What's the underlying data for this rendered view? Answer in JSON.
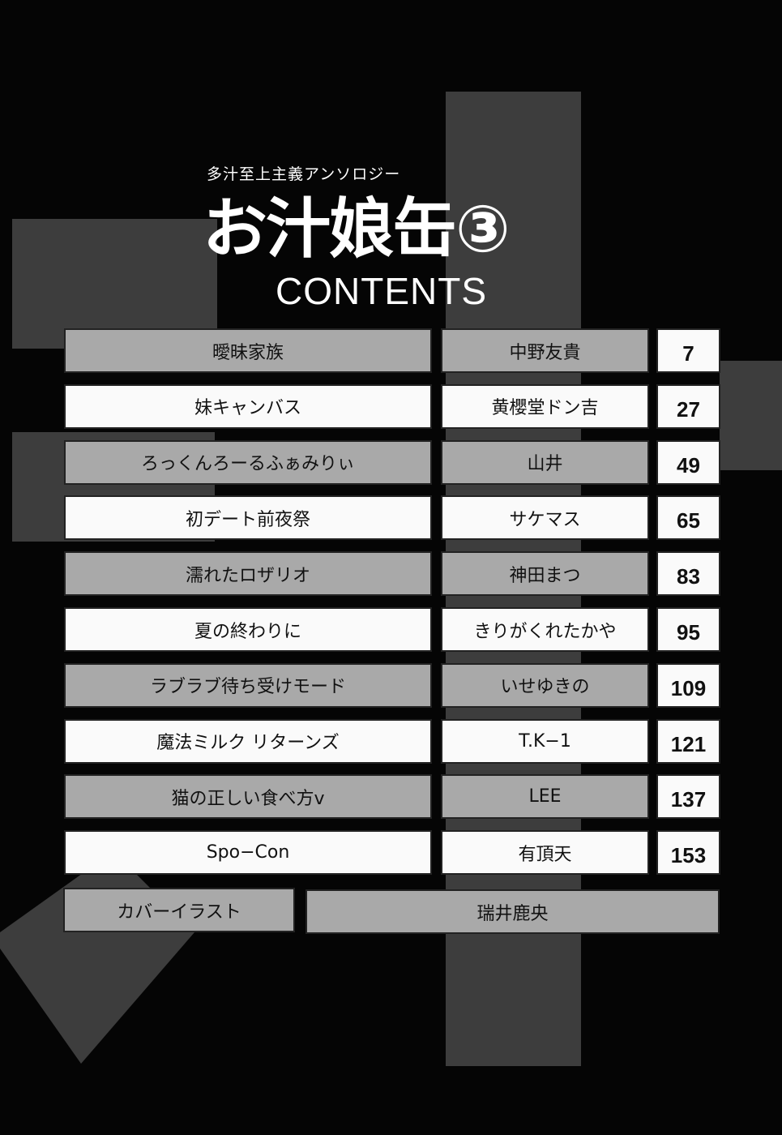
{
  "header": {
    "subtitle": "多汁至上主義アンソロジー",
    "title": "お汁娘缶③",
    "contents_label": "CONTENTS"
  },
  "entries": [
    {
      "title": "曖昧家族",
      "author": "中野友貴",
      "page": "7"
    },
    {
      "title": "妹キャンバス",
      "author": "黄櫻堂ドン吉",
      "page": "27"
    },
    {
      "title": "ろっくんろーるふぁみりぃ",
      "author": "山井",
      "page": "49"
    },
    {
      "title": "初デート前夜祭",
      "author": "サケマス",
      "page": "65"
    },
    {
      "title": "濡れたロザリオ",
      "author": "神田まつ",
      "page": "83"
    },
    {
      "title": "夏の終わりに",
      "author": "きりがくれたかや",
      "page": "95"
    },
    {
      "title": "ラブラブ待ち受けモード",
      "author": "いせゆきの",
      "page": "109"
    },
    {
      "title": "魔法ミルク リターンズ",
      "author": "T.K−1",
      "page": "121"
    },
    {
      "title": "猫の正しい食べ方v",
      "author": "LEE",
      "page": "137"
    },
    {
      "title": "Spo−Con",
      "author": "有頂天",
      "page": "153"
    }
  ],
  "cover": {
    "label": "カバーイラスト",
    "artist": "瑞井鹿央"
  },
  "colors": {
    "background": "#050505",
    "gray_box": "#a9a9a9",
    "white_box": "#fafafa",
    "shape": "#3d3d3d"
  }
}
